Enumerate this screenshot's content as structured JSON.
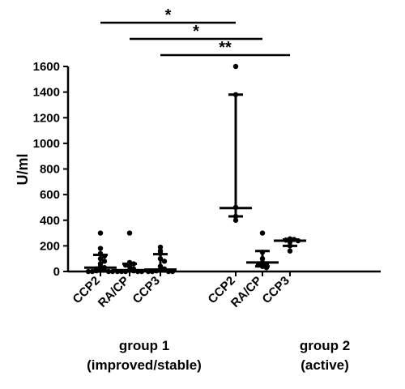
{
  "chart_data": {
    "type": "scatter",
    "ylabel": "U/ml",
    "xlabel": "",
    "title": "",
    "ylim": [
      0,
      1600
    ],
    "yticks": [
      "0",
      "200",
      "400",
      "600",
      "800",
      "1000",
      "1200",
      "1400",
      "1600"
    ],
    "grid": false,
    "groups": [
      {
        "label_line1": "group 1",
        "label_line2": "(improved/stable)"
      },
      {
        "label_line1": "group 2",
        "label_line2": "(active)"
      }
    ],
    "categories": [
      {
        "label": "CCP2",
        "group": 0,
        "median": 30,
        "lower": 0,
        "upper": 130,
        "points": [
          300,
          180,
          140,
          120,
          100,
          80,
          60,
          40,
          30,
          20,
          15,
          10,
          5,
          0,
          0,
          0,
          0
        ]
      },
      {
        "label": "RA/CP",
        "group": 0,
        "median": 10,
        "lower": 0,
        "upper": 60,
        "points": [
          300,
          70,
          60,
          50,
          40,
          20,
          10,
          5,
          0,
          0,
          0,
          0,
          0
        ]
      },
      {
        "label": "CCP3",
        "group": 0,
        "median": 15,
        "lower": 0,
        "upper": 135,
        "points": [
          190,
          160,
          140,
          100,
          80,
          40,
          20,
          15,
          10,
          5,
          0,
          0,
          0,
          0
        ]
      },
      {
        "label": "CCP2",
        "group": 1,
        "median": 495,
        "lower": 430,
        "upper": 1380,
        "points": [
          1600,
          1380,
          500,
          430,
          400
        ]
      },
      {
        "label": "RA/CP",
        "group": 1,
        "median": 70,
        "lower": 40,
        "upper": 160,
        "points": [
          300,
          150,
          100,
          70,
          60,
          50,
          40,
          30
        ]
      },
      {
        "label": "CCP3",
        "group": 1,
        "median": 240,
        "lower": 200,
        "upper": 250,
        "points": [
          255,
          250,
          245,
          240,
          230,
          200,
          160
        ]
      }
    ],
    "significance": [
      {
        "from": 0,
        "to": 3,
        "label": "*"
      },
      {
        "from": 1,
        "to": 4,
        "label": "*"
      },
      {
        "from": 2,
        "to": 5,
        "label": "**"
      }
    ]
  }
}
